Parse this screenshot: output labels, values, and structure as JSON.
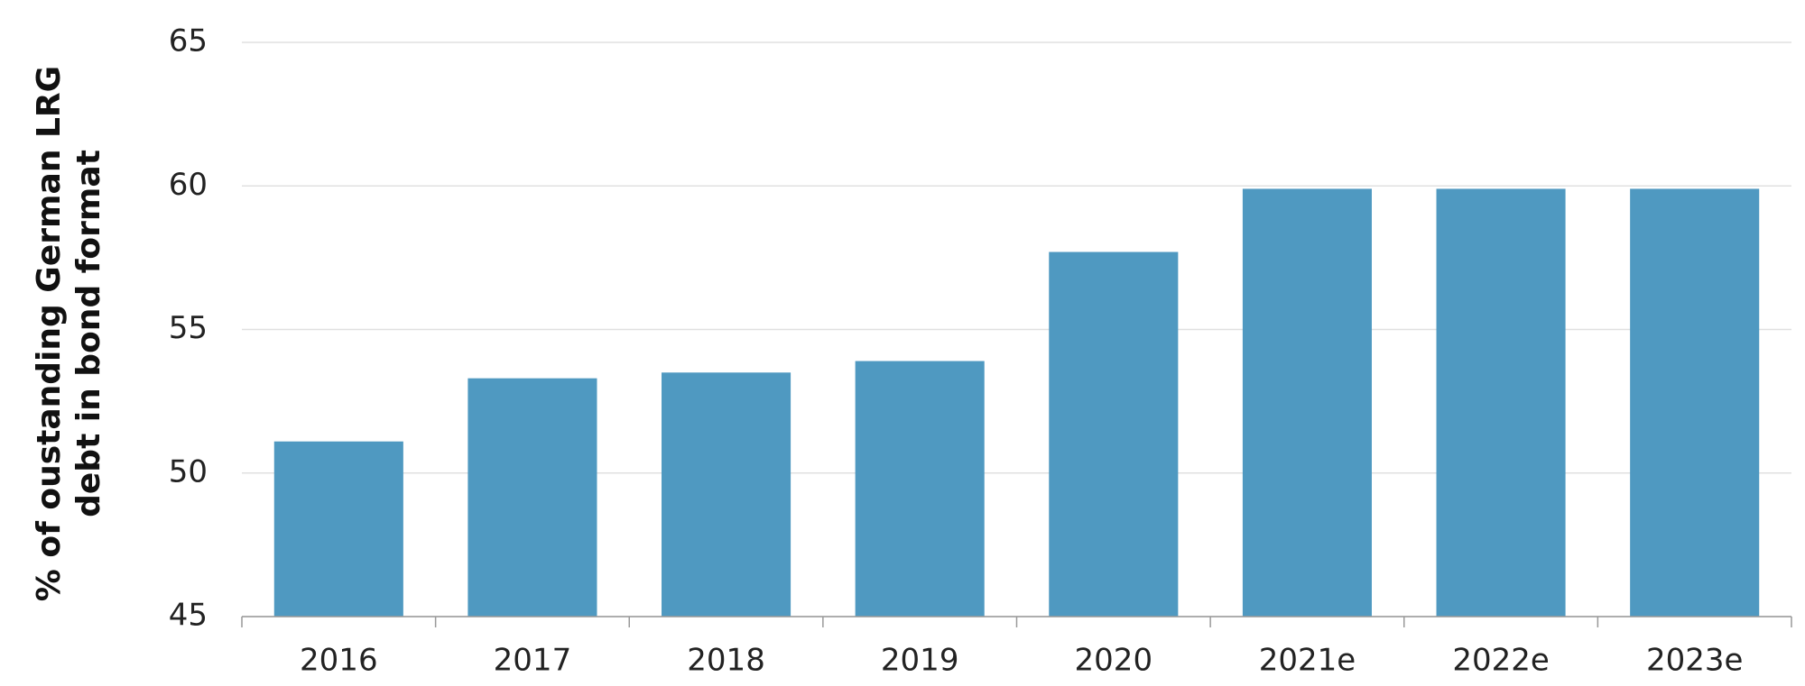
{
  "chart_data": {
    "type": "bar",
    "y_label": [
      "% of oustanding German LRG",
      "debt in bond format"
    ],
    "categories": [
      "2016",
      "2017",
      "2018",
      "2019",
      "2020",
      "2021e",
      "2022e",
      "2023e"
    ],
    "values": [
      51.1,
      53.3,
      53.5,
      53.9,
      57.7,
      59.9,
      59.9,
      59.9
    ],
    "color": "#4f99c1",
    "ylim": [
      45,
      65
    ],
    "yticks": [
      45,
      50,
      55,
      60,
      65
    ],
    "grid": true
  }
}
